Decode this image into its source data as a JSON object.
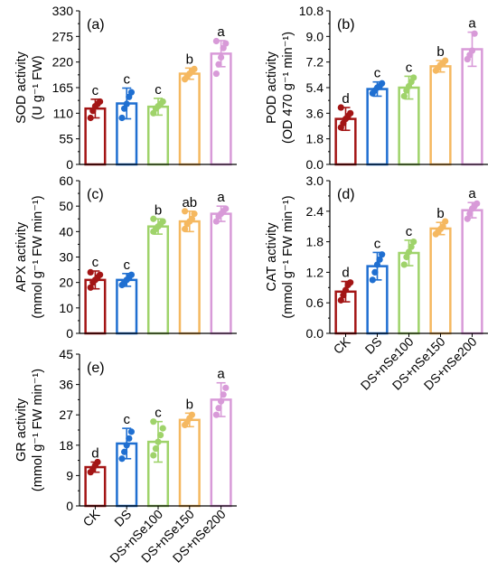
{
  "colors": [
    "#a31515",
    "#1f6fd1",
    "#9fd36a",
    "#f5b860",
    "#d89ad8"
  ],
  "chart_data": [
    {
      "type": "bar",
      "panel": "(a)",
      "ylabel_lines": [
        "SOD activity",
        "(U g⁻¹ FW)"
      ],
      "categories": [
        "CK",
        "DS",
        "DS+nSe100",
        "DS+nSe150",
        "DS+nSe200"
      ],
      "values": [
        120,
        131,
        124,
        195,
        238
      ],
      "errors": [
        20,
        33,
        18,
        12,
        28
      ],
      "letters": [
        "c",
        "c",
        "c",
        "b",
        "a"
      ],
      "points": [
        [
          100,
          115,
          125,
          130,
          135
        ],
        [
          100,
          120,
          130,
          145,
          155
        ],
        [
          110,
          120,
          125,
          130,
          135
        ],
        [
          183,
          190,
          195,
          200,
          205
        ],
        [
          195,
          215,
          230,
          250,
          260,
          265
        ]
      ],
      "ylim": [
        0,
        330
      ],
      "yticks": [
        0,
        55,
        110,
        165,
        220,
        275,
        330
      ],
      "show_xlabels": false
    },
    {
      "type": "bar",
      "panel": "(b)",
      "ylabel_lines": [
        "POD activity",
        "(OD 470 g⁻¹ min⁻¹)"
      ],
      "categories": [
        "CK",
        "DS",
        "DS+nSe100",
        "DS+nSe150",
        "DS+nSe200"
      ],
      "values": [
        3.2,
        5.3,
        5.4,
        6.9,
        8.1
      ],
      "errors": [
        0.8,
        0.5,
        0.8,
        0.4,
        1.2
      ],
      "letters": [
        "d",
        "c",
        "c",
        "b",
        "a"
      ],
      "points": [
        [
          2.6,
          2.9,
          3.2,
          3.4,
          3.6,
          4.0
        ],
        [
          5.0,
          5.2,
          5.4,
          5.5,
          5.7
        ],
        [
          4.8,
          5.2,
          5.5,
          5.8,
          6.1
        ],
        [
          6.6,
          6.8,
          7.0,
          7.1,
          7.3
        ],
        [
          7.4,
          7.7,
          8.0,
          9.2
        ]
      ],
      "ylim": [
        0,
        10.8
      ],
      "yticks": [
        0.0,
        1.8,
        3.6,
        5.4,
        7.2,
        9.0,
        10.8
      ],
      "show_xlabels": false
    },
    {
      "type": "bar",
      "panel": "(c)",
      "ylabel_lines": [
        "APX activity",
        "(mmol g⁻¹ FW min⁻¹)"
      ],
      "categories": [
        "CK",
        "DS",
        "DS+nSe100",
        "DS+nSe150",
        "DS+nSe200"
      ],
      "values": [
        21,
        21,
        42,
        44,
        47
      ],
      "errors": [
        3.5,
        2.5,
        3.0,
        4.0,
        3.0
      ],
      "letters": [
        "c",
        "c",
        "b",
        "ab",
        "a"
      ],
      "points": [
        [
          18,
          20,
          21,
          22,
          23,
          24
        ],
        [
          19,
          20,
          21,
          22,
          23
        ],
        [
          40,
          41,
          42,
          43,
          44,
          45
        ],
        [
          41,
          43,
          44,
          45,
          47,
          48
        ],
        [
          44,
          46,
          47,
          48,
          49
        ]
      ],
      "ylim": [
        0,
        60
      ],
      "yticks": [
        0,
        10,
        20,
        30,
        40,
        50,
        60
      ],
      "show_xlabels": false
    },
    {
      "type": "bar",
      "panel": "(d)",
      "ylabel_lines": [
        "CAT activity",
        "(mmol g⁻¹ FW min⁻¹)"
      ],
      "categories": [
        "CK",
        "DS",
        "DS+nSe100",
        "DS+nSe150",
        "DS+nSe200"
      ],
      "values": [
        0.82,
        1.32,
        1.58,
        2.06,
        2.42
      ],
      "errors": [
        0.2,
        0.27,
        0.25,
        0.12,
        0.15
      ],
      "letters": [
        "d",
        "c",
        "c",
        "b",
        "a"
      ],
      "points": [
        [
          0.65,
          0.75,
          0.85,
          0.95,
          1.0
        ],
        [
          1.05,
          1.2,
          1.35,
          1.45,
          1.55
        ],
        [
          1.35,
          1.5,
          1.6,
          1.7,
          1.8
        ],
        [
          1.95,
          2.0,
          2.05,
          2.1,
          2.2
        ],
        [
          2.25,
          2.35,
          2.45,
          2.5,
          2.55
        ]
      ],
      "ylim": [
        0,
        3.0
      ],
      "yticks": [
        0.0,
        0.6,
        1.2,
        1.8,
        2.4,
        3.0
      ],
      "show_xlabels": true
    },
    {
      "type": "bar",
      "panel": "(e)",
      "ylabel_lines": [
        "GR activity",
        "(mmol g⁻¹ FW min⁻¹)"
      ],
      "categories": [
        "CK",
        "DS",
        "DS+nSe100",
        "DS+nSe150",
        "DS+nSe200"
      ],
      "values": [
        11.5,
        18.5,
        19.0,
        25.5,
        31.5
      ],
      "errors": [
        1.5,
        4.5,
        6.0,
        2.0,
        5.0
      ],
      "letters": [
        "d",
        "c",
        "c",
        "b",
        "a"
      ],
      "points": [
        [
          10,
          11,
          12,
          13
        ],
        [
          14,
          16,
          18,
          20,
          22
        ],
        [
          15,
          17,
          19,
          21,
          23,
          25
        ],
        [
          24,
          25,
          26,
          27
        ],
        [
          27,
          29,
          31,
          33,
          35
        ]
      ],
      "ylim": [
        0,
        45
      ],
      "yticks": [
        0,
        9,
        18,
        27,
        36,
        45
      ],
      "show_xlabels": true
    }
  ]
}
